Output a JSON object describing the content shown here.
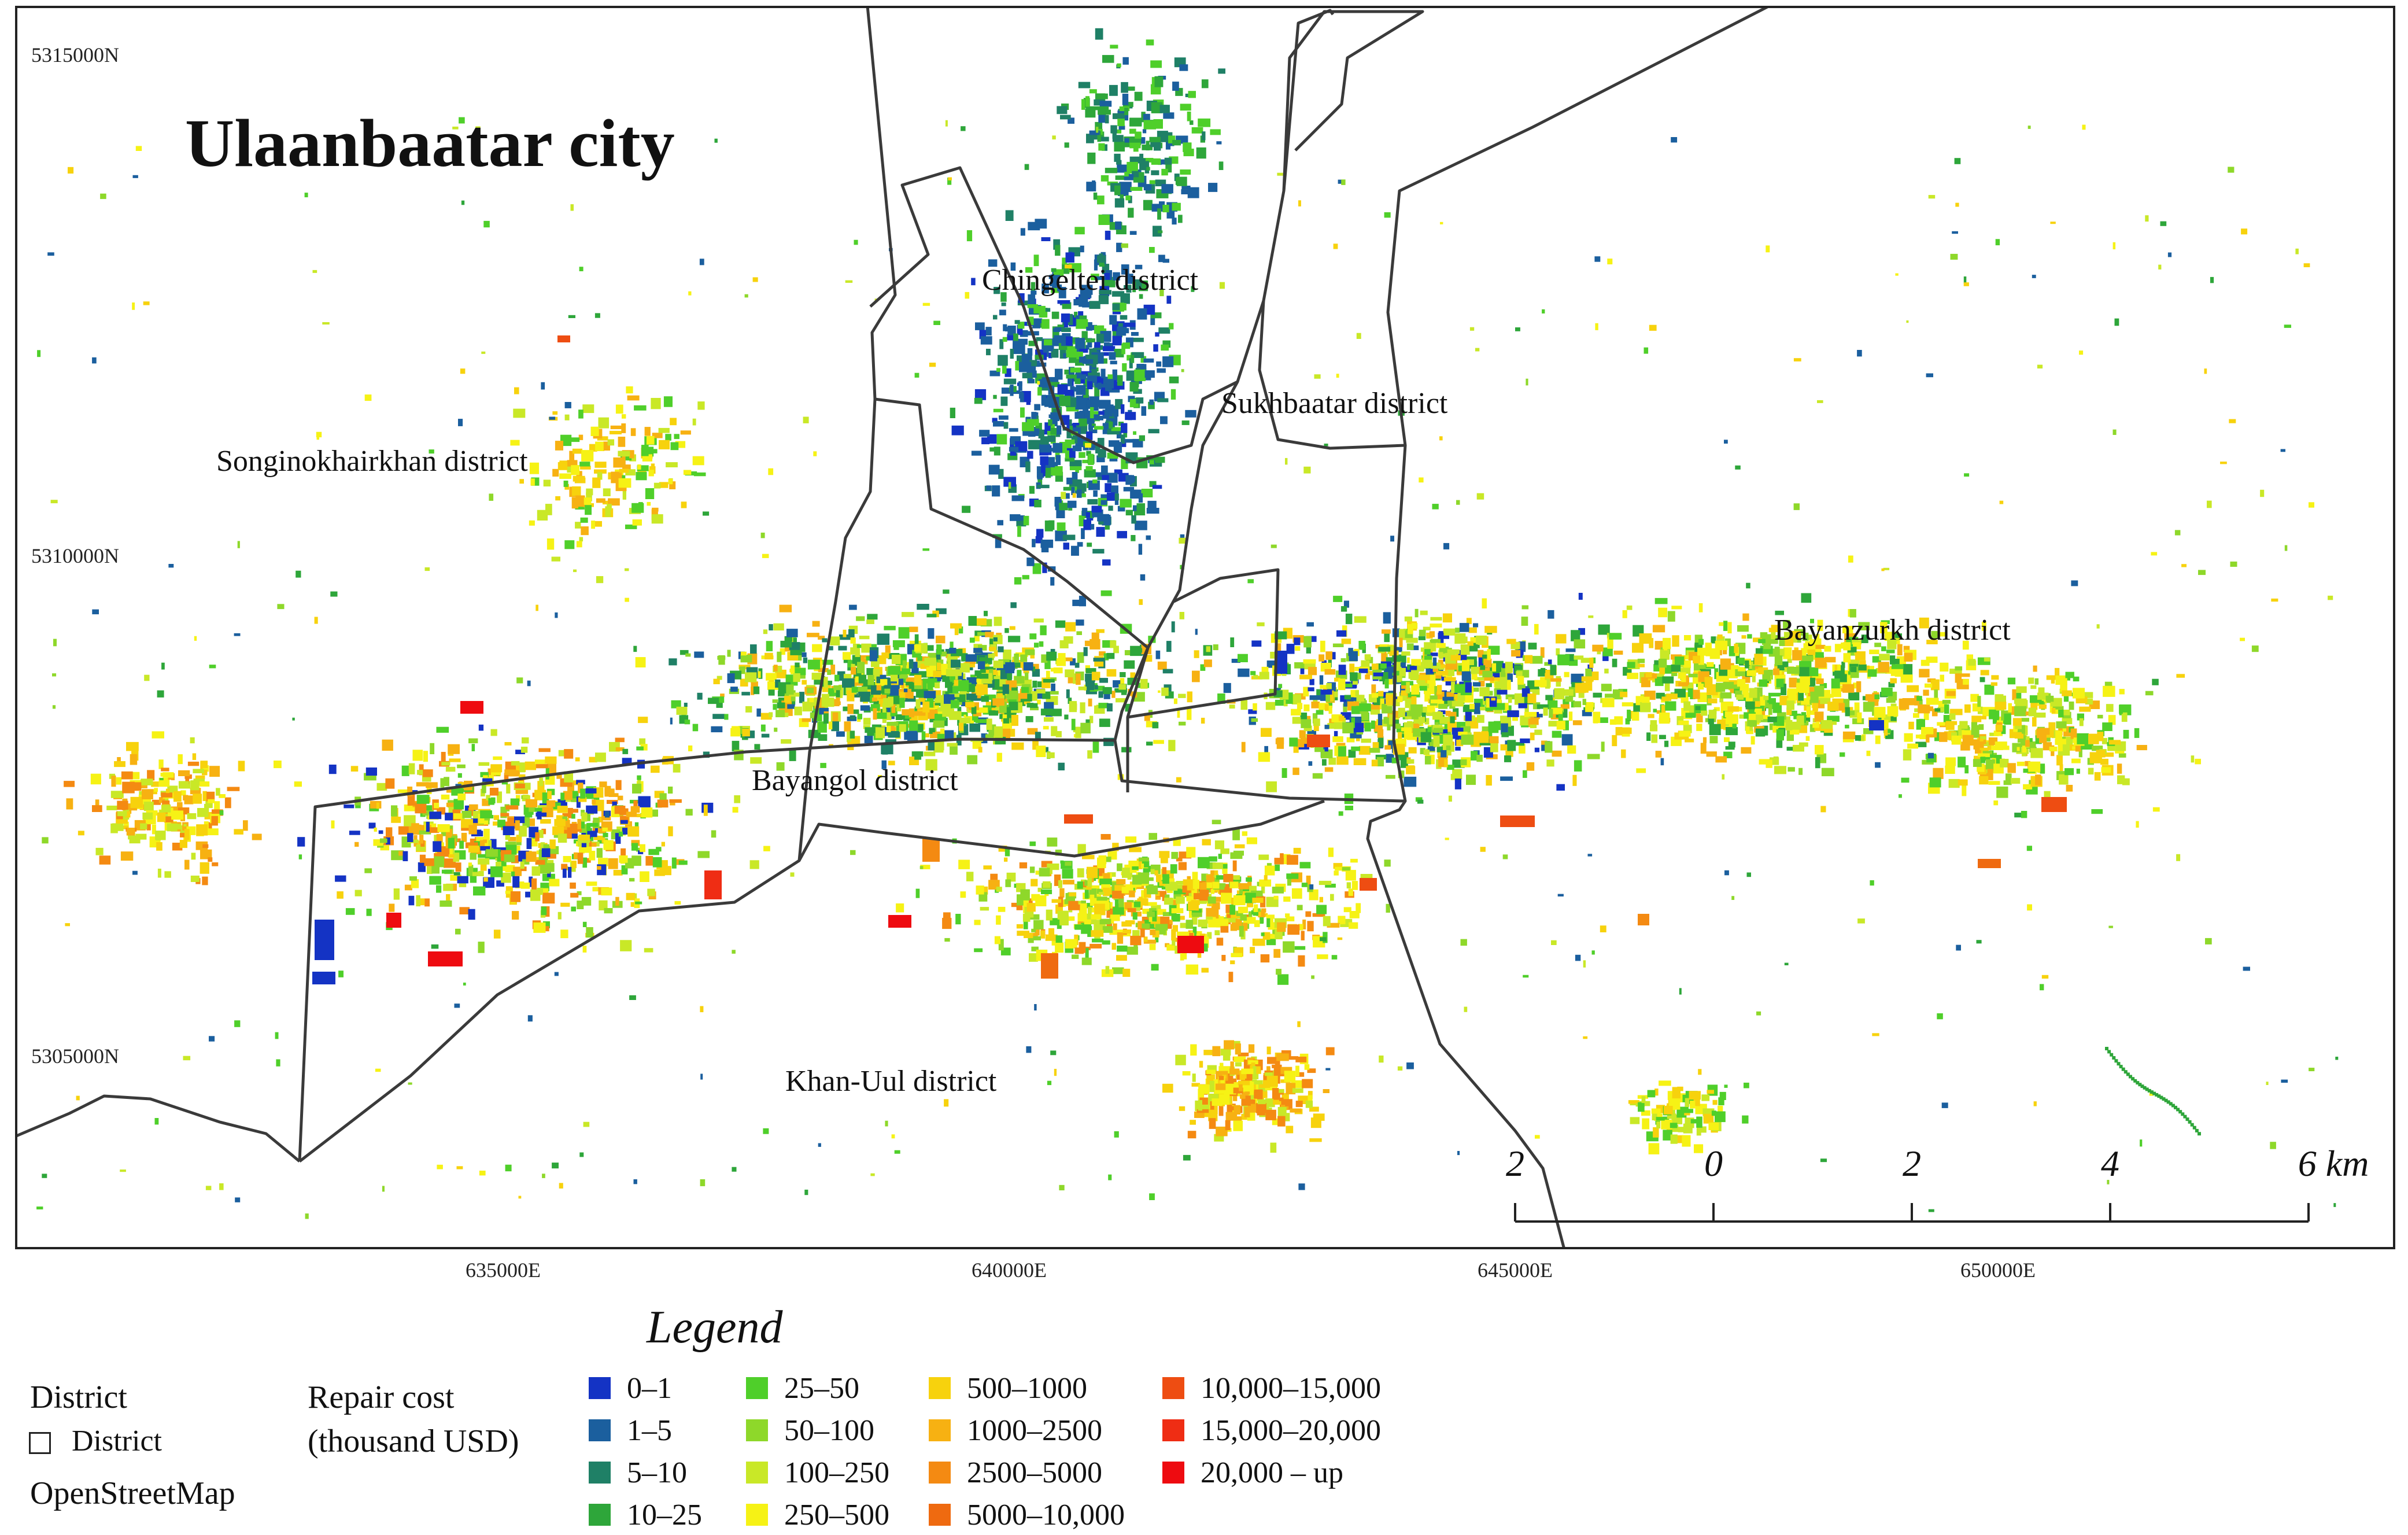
{
  "map": {
    "title": "Ulaanbaatar city",
    "y_ticks": [
      "5315000N",
      "5310000N",
      "5305000N"
    ],
    "x_ticks": [
      "635000E",
      "640000E",
      "645000E",
      "650000E"
    ],
    "districts": [
      "Chingeltei district",
      "Sukhbaatar district",
      "Songinokhairkhan district",
      "Bayanzurkh district",
      "Bayangol district",
      "Khan-Uul district"
    ],
    "scale_bar": {
      "labels": [
        "2",
        "0",
        "2",
        "4",
        "6 km"
      ]
    },
    "boundary_color": "#3a3a3a"
  },
  "legend": {
    "title": "Legend",
    "district_header": "District",
    "district_item": "District",
    "basemap": "OpenStreetMap",
    "repair_cost_line1": "Repair cost",
    "repair_cost_line2": "(thousand USD)",
    "classes": [
      {
        "label": "0–1",
        "color": "#1433c4"
      },
      {
        "label": "1–5",
        "color": "#1b5f9e"
      },
      {
        "label": "5–10",
        "color": "#1f8066"
      },
      {
        "label": "10–25",
        "color": "#2ea63a"
      },
      {
        "label": "25–50",
        "color": "#4fcf2a"
      },
      {
        "label": "50–100",
        "color": "#8ed82a"
      },
      {
        "label": "100–250",
        "color": "#c9e827"
      },
      {
        "label": "250–500",
        "color": "#f6f215"
      },
      {
        "label": "500–1000",
        "color": "#f7d20d"
      },
      {
        "label": "1000–2500",
        "color": "#f7b112"
      },
      {
        "label": "2500–5000",
        "color": "#f48a12"
      },
      {
        "label": "5000–10,000",
        "color": "#ef6a10"
      },
      {
        "label": "10,000–15,000",
        "color": "#ee4d12"
      },
      {
        "label": "15,000–20,000",
        "color": "#ef2d14"
      },
      {
        "label": "20,000 – up",
        "color": "#ee0b10"
      }
    ]
  }
}
